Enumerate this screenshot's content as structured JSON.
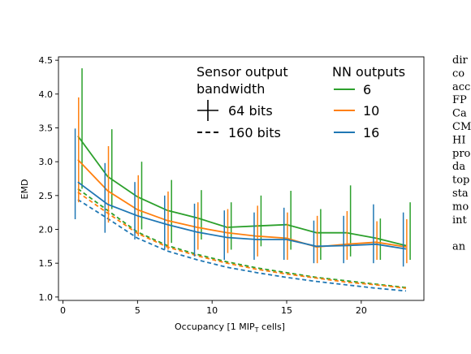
{
  "chart_data": {
    "type": "line",
    "xlabel_main": "Occupancy [1 MIP",
    "xlabel_sub": "T",
    "xlabel_tail": " cells]",
    "ylabel": "EMD",
    "xlim": [
      -0.3,
      24.2
    ],
    "ylim": [
      0.95,
      4.55
    ],
    "xticks": [
      0,
      5,
      10,
      15,
      20
    ],
    "yticks": [
      1.0,
      1.5,
      2.0,
      2.5,
      3.0,
      3.5,
      4.0,
      4.5
    ],
    "ytick_labels": [
      "1.0",
      "1.5",
      "2.0",
      "2.5",
      "3.0",
      "3.5",
      "4.0",
      "4.5"
    ],
    "x": [
      1,
      3,
      5,
      7,
      9,
      11,
      13,
      15,
      17,
      19,
      21,
      23
    ],
    "legend_left": {
      "title_line1": "Sensor output",
      "title_line2": "bandwidth",
      "entries": [
        {
          "label": "64 bits",
          "style": "solid"
        },
        {
          "label": "160 bits",
          "style": "dashed"
        }
      ]
    },
    "legend_right": {
      "title": "NN outputs",
      "entries": [
        {
          "label": "6",
          "color": "#2ca02c"
        },
        {
          "label": "10",
          "color": "#ff7f0e"
        },
        {
          "label": "16",
          "color": "#1f77b4"
        }
      ]
    },
    "series": [
      {
        "outputs": "6",
        "bandwidth": "64 bits",
        "color": "#2ca02c",
        "style": "solid",
        "values": [
          3.38,
          2.78,
          2.48,
          2.28,
          2.17,
          2.03,
          2.05,
          2.07,
          1.95,
          1.95,
          1.87,
          1.76
        ],
        "err_low": [
          2.6,
          2.3,
          2.0,
          1.8,
          1.85,
          1.7,
          1.75,
          1.7,
          1.55,
          1.6,
          1.55,
          1.55
        ],
        "err_high": [
          4.38,
          3.48,
          3.0,
          2.73,
          2.58,
          2.4,
          2.5,
          2.57,
          2.3,
          2.65,
          2.16,
          2.4
        ]
      },
      {
        "outputs": "10",
        "bandwidth": "64 bits",
        "color": "#ff7f0e",
        "style": "solid",
        "values": [
          3.03,
          2.57,
          2.29,
          2.13,
          2.03,
          1.95,
          1.9,
          1.87,
          1.74,
          1.78,
          1.81,
          1.74
        ],
        "err_low": [
          2.4,
          2.1,
          1.9,
          1.7,
          1.7,
          1.65,
          1.6,
          1.55,
          1.5,
          1.55,
          1.55,
          1.5
        ],
        "err_high": [
          3.95,
          3.23,
          2.8,
          2.56,
          2.4,
          2.3,
          2.35,
          2.25,
          2.2,
          2.27,
          2.12,
          2.15
        ]
      },
      {
        "outputs": "16",
        "bandwidth": "64 bits",
        "color": "#1f77b4",
        "style": "solid",
        "values": [
          2.7,
          2.37,
          2.2,
          2.07,
          1.96,
          1.88,
          1.85,
          1.85,
          1.75,
          1.76,
          1.78,
          1.71
        ],
        "err_low": [
          2.15,
          1.95,
          1.85,
          1.7,
          1.6,
          1.55,
          1.55,
          1.55,
          1.5,
          1.5,
          1.5,
          1.45
        ],
        "err_high": [
          3.49,
          2.98,
          2.7,
          2.5,
          2.38,
          2.28,
          2.25,
          2.32,
          2.13,
          2.2,
          2.37,
          2.25
        ]
      },
      {
        "outputs": "6",
        "bandwidth": "160 bits",
        "color": "#2ca02c",
        "style": "dashed",
        "values": [
          2.6,
          2.28,
          1.96,
          1.76,
          1.63,
          1.52,
          1.43,
          1.36,
          1.29,
          1.24,
          1.19,
          1.14
        ]
      },
      {
        "outputs": "10",
        "bandwidth": "160 bits",
        "color": "#ff7f0e",
        "style": "dashed",
        "values": [
          2.55,
          2.24,
          1.94,
          1.74,
          1.61,
          1.5,
          1.41,
          1.34,
          1.28,
          1.22,
          1.18,
          1.13
        ]
      },
      {
        "outputs": "16",
        "bandwidth": "160 bits",
        "color": "#1f77b4",
        "style": "dashed",
        "values": [
          2.44,
          2.16,
          1.87,
          1.68,
          1.55,
          1.44,
          1.36,
          1.29,
          1.23,
          1.18,
          1.13,
          1.09
        ]
      }
    ]
  },
  "side_text": [
    "dir",
    "co",
    "acc",
    "FP",
    "Ca",
    "CM",
    "HI",
    "pro",
    "da",
    "top",
    "sta",
    "mo",
    "int",
    "",
    "an"
  ]
}
